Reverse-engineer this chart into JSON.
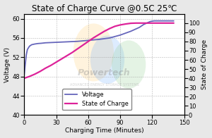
{
  "title": "State of Charge Curve @0.5C 25℃",
  "xlabel": "Charging Time (Minutes)",
  "ylabel_left": "Voltage (V)",
  "ylabel_right": "State of Charge",
  "xlim": [
    0,
    150
  ],
  "ylim_left": [
    40.0,
    61.0
  ],
  "ylim_right": [
    0,
    110
  ],
  "xticks": [
    0,
    30,
    60,
    90,
    120,
    150
  ],
  "yticks_left": [
    40.0,
    44.0,
    48.0,
    52.0,
    56.0,
    60.0
  ],
  "yticks_right": [
    0,
    10,
    20,
    30,
    40,
    50,
    60,
    70,
    80,
    90,
    100
  ],
  "voltage_color": "#6666bb",
  "soc_color": "#dd2299",
  "background_color": "#e8e8e8",
  "plot_bg_color": "#ffffff",
  "grid_color": "#999999",
  "voltage_x": [
    0,
    1,
    2,
    3,
    5,
    7,
    10,
    13,
    16,
    20,
    25,
    30,
    40,
    50,
    60,
    70,
    80,
    90,
    100,
    108,
    112,
    115,
    118,
    120,
    122,
    124,
    126,
    128,
    130,
    135,
    140
  ],
  "voltage_y": [
    48.2,
    50.5,
    52.5,
    53.6,
    54.3,
    54.6,
    54.75,
    54.85,
    54.9,
    55.0,
    55.05,
    55.1,
    55.2,
    55.3,
    55.5,
    55.7,
    56.0,
    56.6,
    57.4,
    58.2,
    58.8,
    59.1,
    59.4,
    59.5,
    59.55,
    59.55,
    59.55,
    59.55,
    59.55,
    59.55,
    59.55
  ],
  "soc_x": [
    0,
    5,
    10,
    15,
    20,
    25,
    30,
    35,
    40,
    45,
    50,
    55,
    60,
    65,
    70,
    75,
    80,
    85,
    90,
    95,
    100,
    105,
    110,
    115,
    120,
    125,
    130,
    135,
    140
  ],
  "soc_y": [
    40,
    42,
    44.5,
    47.5,
    51,
    54,
    57.5,
    61,
    64.5,
    68,
    72,
    76,
    80,
    84,
    87.5,
    91,
    94,
    96.5,
    98,
    99,
    99.8,
    100,
    100,
    100,
    100,
    100,
    100,
    100,
    100
  ],
  "legend_voltage": "Voltage",
  "legend_soc": "State of Charge",
  "watermark": "Powertech",
  "title_fontsize": 8.5,
  "axis_fontsize": 6.5,
  "tick_fontsize": 6,
  "legend_fontsize": 6
}
